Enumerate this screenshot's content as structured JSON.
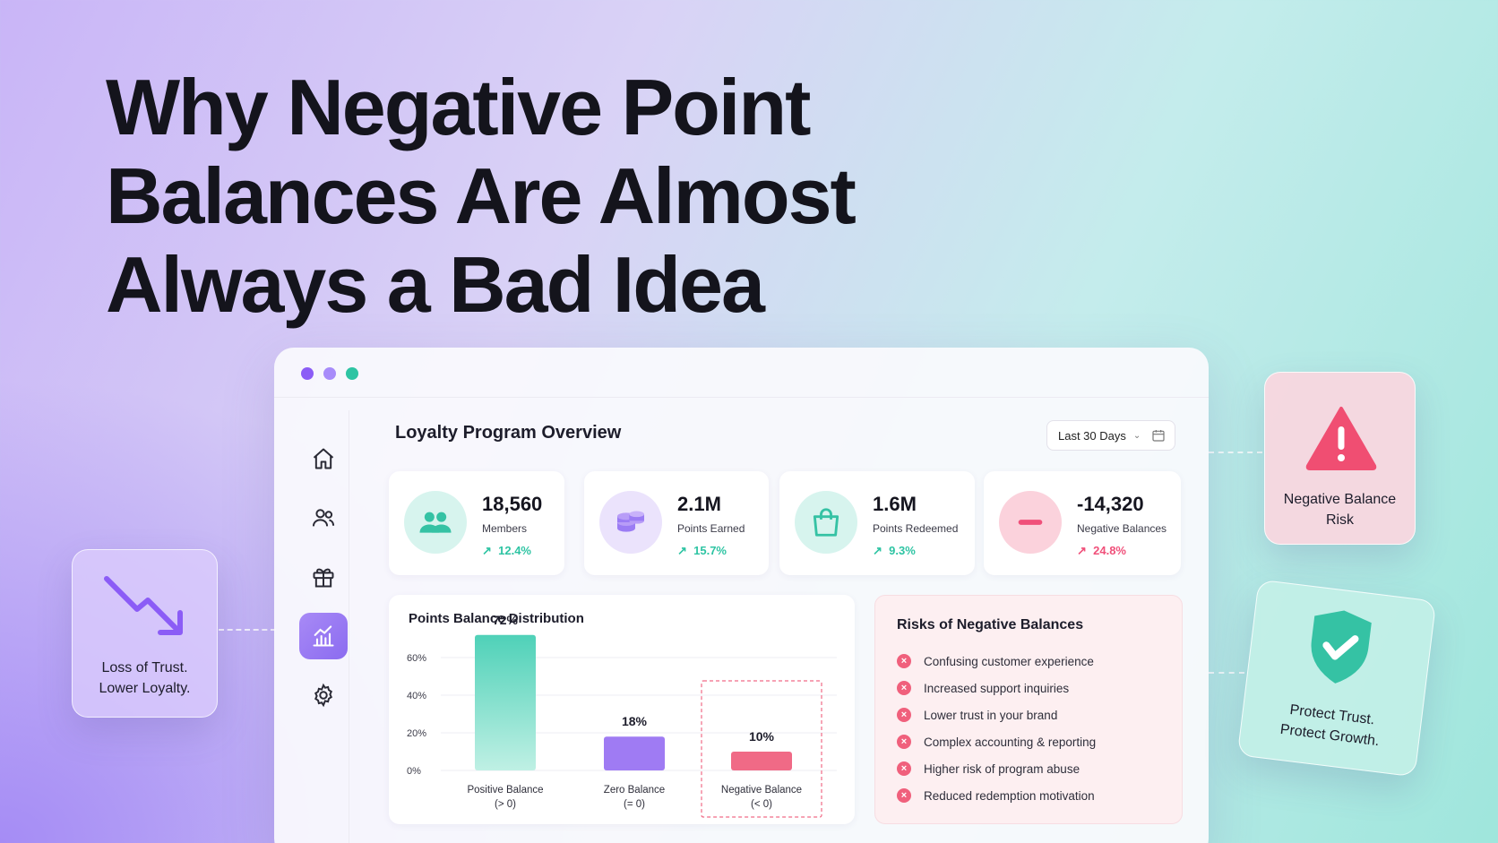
{
  "headline": {
    "line1": "Why Negative Point",
    "line2": "Balances Are Almost",
    "line3": "Always a Bad Idea"
  },
  "window": {
    "dots": [
      "#8b5cf6",
      "#a78bfa",
      "#2ec4a3"
    ],
    "title": "Loyalty Program Overview",
    "date_range": "Last 30 Days",
    "nav": [
      {
        "name": "home-icon"
      },
      {
        "name": "users-icon"
      },
      {
        "name": "gift-icon"
      },
      {
        "name": "chart-icon",
        "active": true
      },
      {
        "name": "gear-icon"
      }
    ]
  },
  "stats": [
    {
      "value": "18,560",
      "label": "Members",
      "change": "12.4%",
      "icon": "users-icon",
      "color": "#2ec4a3"
    },
    {
      "value": "2.1M",
      "label": "Points Earned",
      "change": "15.7%",
      "icon": "coins-icon",
      "color": "#2ec4a3"
    },
    {
      "value": "1.6M",
      "label": "Points Redeemed",
      "change": "9.3%",
      "icon": "shopping-bag-icon",
      "color": "#2ec4a3"
    },
    {
      "value": "-14,320",
      "label": "Negative Balances",
      "change": "24.8%",
      "icon": "minus-icon",
      "color": "#f0507a"
    }
  ],
  "chart_data": {
    "type": "bar",
    "title": "Points Balance Distribution",
    "categories": [
      "Positive Balance",
      "Zero Balance",
      "Negative Balance"
    ],
    "sublabels": [
      "(> 0)",
      "(= 0)",
      "(< 0)"
    ],
    "values": [
      72,
      18,
      10
    ],
    "value_labels": [
      "72%",
      "18%",
      "10%"
    ],
    "y_ticks": [
      "0%",
      "20%",
      "40%",
      "60%"
    ],
    "ylim": [
      0,
      80
    ],
    "colors": [
      "#4fd1b8",
      "#9f7bf3",
      "#f06a86"
    ],
    "highlight_category": "Negative Balance"
  },
  "risks": {
    "title": "Risks of Negative Balances",
    "items": [
      "Confusing customer experience",
      "Increased support inquiries",
      "Lower trust in your brand",
      "Complex accounting & reporting",
      "Higher risk of program abuse",
      "Reduced redemption motivation"
    ]
  },
  "callouts": {
    "left": {
      "line1": "Loss of Trust.",
      "line2": "Lower Loyalty."
    },
    "top_right": {
      "line1": "Negative Balance",
      "line2": "Risk"
    },
    "bottom_right": {
      "line1": "Protect Trust.",
      "line2": "Protect Growth."
    }
  }
}
